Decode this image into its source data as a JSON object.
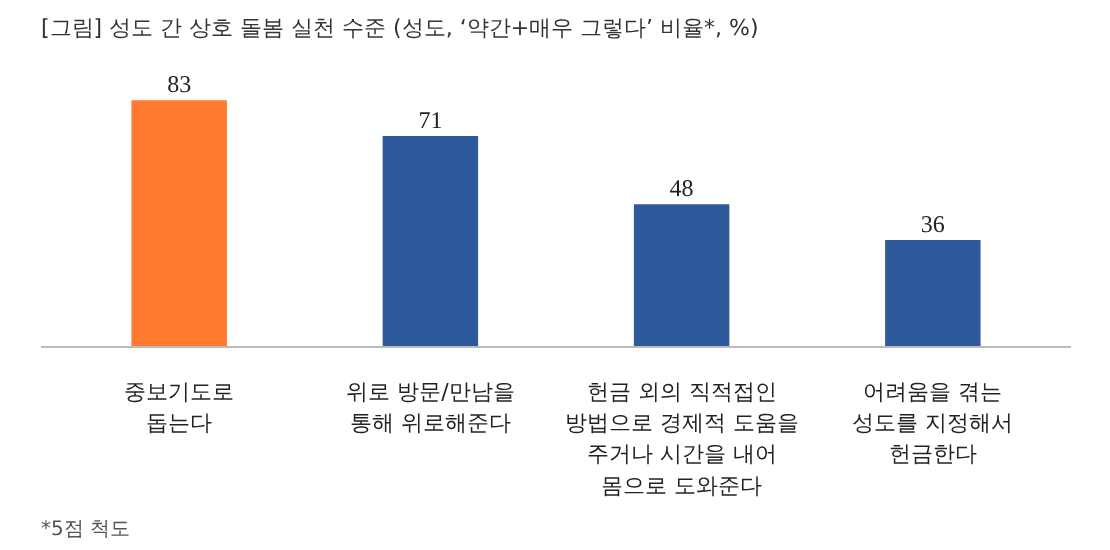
{
  "chart_data": {
    "type": "bar",
    "title": "[그림] 성도 간 상호 돌봄 실천 수준 (성도, ‘약간+매우 그렇다’ 비율*, %)",
    "categories": [
      "중보기도로\n돕는다",
      "위로 방문/만남을\n통해 위로해준다",
      "헌금 외의 직적접인\n방법으로 경제적 도움을\n주거나 시간을 내어\n몸으로 도와준다",
      "어려움을 겪는\n성도를 지정해서\n헌금한다"
    ],
    "values": [
      83,
      71,
      48,
      36
    ],
    "colors": [
      "#ff7a2f",
      "#2e5a9c",
      "#2e5a9c",
      "#2e5a9c"
    ],
    "data_labels": true,
    "grid": false,
    "annotations": [
      "*5점 척도"
    ]
  }
}
